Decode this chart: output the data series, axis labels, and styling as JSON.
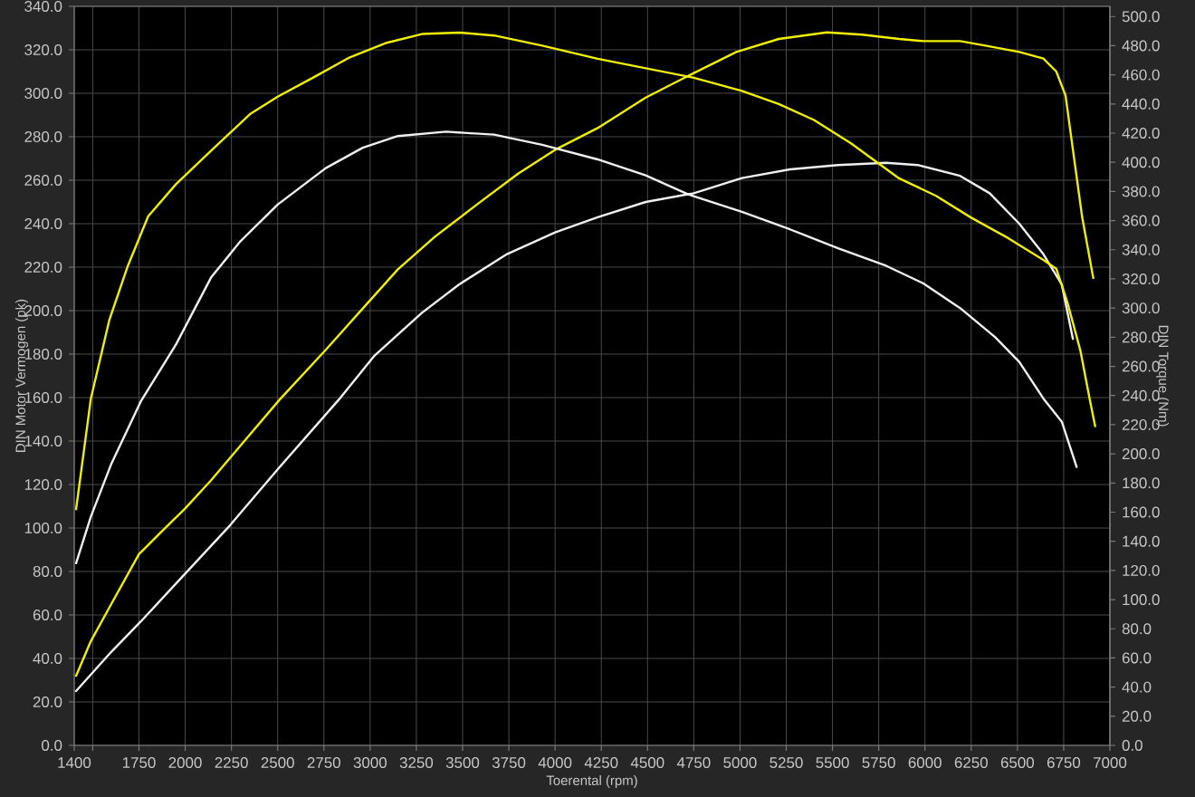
{
  "chart_data": {
    "type": "line",
    "xlabel": "Toerental (rpm)",
    "ylabel": "DIN Motor Vermogen (pk)",
    "y2label": "DIN Torque (Nm)",
    "xlim": [
      1400,
      7000
    ],
    "xticks": [
      1400,
      {
        "value": 1500,
        "label": null
      },
      1750,
      2000,
      2250,
      2500,
      2750,
      3000,
      3250,
      3500,
      3750,
      4000,
      4250,
      4500,
      4750,
      5000,
      5250,
      5500,
      5750,
      6000,
      6250,
      6500,
      6750,
      7000
    ],
    "ylim": [
      0,
      340
    ],
    "yticks": [
      {
        "value": 0,
        "label": "0.0"
      },
      {
        "value": 20,
        "label": "20.0"
      },
      {
        "value": 40,
        "label": "40.0"
      },
      {
        "value": 60,
        "label": "60.0"
      },
      {
        "value": 80,
        "label": "80.0"
      },
      {
        "value": 100,
        "label": "100.0"
      },
      {
        "value": 120,
        "label": "120.0"
      },
      {
        "value": 140,
        "label": "140.0"
      },
      {
        "value": 160,
        "label": "160.0"
      },
      {
        "value": 180,
        "label": "180.0"
      },
      {
        "value": 200,
        "label": "200.0"
      },
      {
        "value": 220,
        "label": "220.0"
      },
      {
        "value": 240,
        "label": "240.0"
      },
      {
        "value": 260,
        "label": "260.0"
      },
      {
        "value": 280,
        "label": "280.0"
      },
      {
        "value": 300,
        "label": "300.0"
      },
      {
        "value": 320,
        "label": "320.0"
      },
      {
        "value": 340,
        "label": "340.0"
      }
    ],
    "y2lim": [
      0,
      507
    ],
    "y2ticks": [
      {
        "value": 0,
        "label": "0.0"
      },
      {
        "value": 20,
        "label": "20.0"
      },
      {
        "value": 40,
        "label": "40.0"
      },
      {
        "value": 60,
        "label": "60.0"
      },
      {
        "value": 80,
        "label": "80.0"
      },
      {
        "value": 100,
        "label": "100.0"
      },
      {
        "value": 120,
        "label": "120.0"
      },
      {
        "value": 140,
        "label": "140.0"
      },
      {
        "value": 160,
        "label": "160.0"
      },
      {
        "value": 180,
        "label": "180.0"
      },
      {
        "value": 200,
        "label": "200.0"
      },
      {
        "value": 220,
        "label": "220.0"
      },
      {
        "value": 240,
        "label": "240.0"
      },
      {
        "value": 260,
        "label": "260.0"
      },
      {
        "value": 280,
        "label": "280.0"
      },
      {
        "value": 300,
        "label": "300.0"
      },
      {
        "value": 320,
        "label": "320.0"
      },
      {
        "value": 340,
        "label": "340.0"
      },
      {
        "value": 360,
        "label": "360.0"
      },
      {
        "value": 380,
        "label": "380.0"
      },
      {
        "value": 400,
        "label": "400.0"
      },
      {
        "value": 420,
        "label": "420.0"
      },
      {
        "value": 440,
        "label": "440.0"
      },
      {
        "value": 460,
        "label": "460.0"
      },
      {
        "value": 480,
        "label": "480.0"
      },
      {
        "value": 500,
        "label": "500.0"
      }
    ],
    "grid": true,
    "series": [
      {
        "color": "#f0f0f0",
        "axis": "y",
        "x": [
          1410,
          1600,
          1760,
          2000,
          2240,
          2500,
          2830,
          3020,
          3280,
          3480,
          3740,
          4000,
          4230,
          4490,
          4750,
          5010,
          5270,
          5530,
          5790,
          5960,
          6190,
          6350,
          6510,
          6640,
          6740,
          6800
        ],
        "values": [
          25,
          43,
          57,
          79,
          101,
          127,
          159,
          179,
          199,
          212,
          226,
          236,
          243,
          250,
          254,
          261,
          265,
          267,
          268,
          267,
          262,
          254,
          240,
          226,
          212,
          187
        ]
      },
      {
        "color": "#f0f0f0",
        "axis": "y2",
        "x": [
          1410,
          1490,
          1600,
          1760,
          1950,
          2140,
          2300,
          2500,
          2760,
          2960,
          3150,
          3410,
          3670,
          3930,
          4230,
          4490,
          4720,
          5010,
          5270,
          5530,
          5790,
          5990,
          6190,
          6380,
          6510,
          6640,
          6740,
          6820
        ],
        "values": [
          125,
          157,
          193,
          236,
          275,
          321,
          346,
          371,
          396,
          410,
          418,
          421,
          419,
          412,
          402,
          391,
          378,
          366,
          354,
          341,
          329,
          317,
          300,
          280,
          263,
          238,
          222,
          191
        ]
      },
      {
        "color": "#f0f000",
        "axis": "y",
        "x": [
          1410,
          1490,
          1600,
          1750,
          1880,
          2000,
          2140,
          2300,
          2510,
          2760,
          2960,
          3150,
          3350,
          3580,
          3800,
          4000,
          4230,
          4490,
          4720,
          4980,
          5210,
          5470,
          5660,
          5860,
          5990,
          6190,
          6320,
          6510,
          6640,
          6710,
          6760,
          6800,
          6850,
          6910
        ],
        "values": [
          32,
          48,
          65,
          88,
          99,
          109,
          122,
          138,
          159,
          182,
          201,
          219,
          234,
          249,
          263,
          274,
          284,
          298,
          308,
          319,
          325,
          328,
          327,
          325,
          324,
          324,
          322,
          319,
          316,
          310,
          299,
          274,
          243,
          215
        ]
      },
      {
        "color": "#f0f000",
        "axis": "y2",
        "x": [
          1410,
          1490,
          1590,
          1690,
          1800,
          1950,
          2140,
          2350,
          2500,
          2690,
          2890,
          3090,
          3280,
          3480,
          3670,
          3930,
          4230,
          4750,
          5010,
          5210,
          5400,
          5600,
          5860,
          6060,
          6250,
          6450,
          6640,
          6710,
          6770,
          6840,
          6890,
          6920
        ],
        "values": [
          162,
          238,
          292,
          329,
          363,
          385,
          408,
          433,
          445,
          458,
          472,
          482,
          488,
          489,
          487,
          480,
          471,
          458,
          449,
          440,
          429,
          413,
          389,
          377,
          362,
          348,
          333,
          327,
          304,
          271,
          238,
          219
        ]
      }
    ]
  }
}
